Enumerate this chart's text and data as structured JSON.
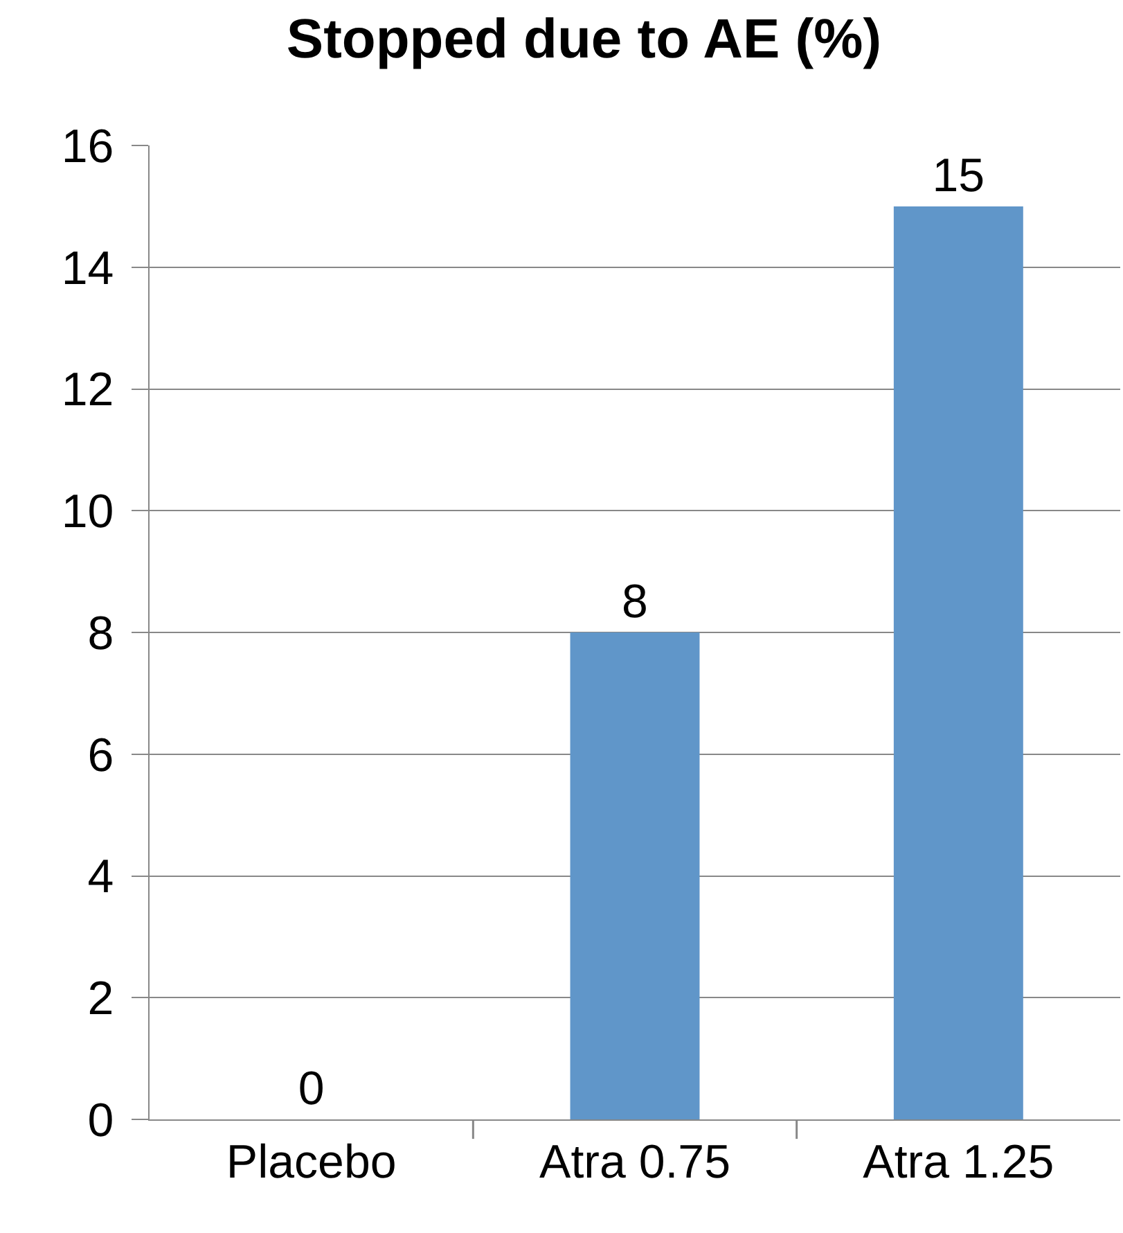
{
  "chart_data": {
    "type": "bar",
    "title": "Stopped due to AE (%)",
    "categories": [
      "Placebo",
      "Atra 0.75",
      "Atra 1.25"
    ],
    "values": [
      0,
      8,
      15
    ],
    "color": "#6096c9",
    "ylim": [
      0,
      16
    ],
    "yticks": [
      0,
      2,
      4,
      6,
      8,
      10,
      12,
      14,
      16
    ],
    "grid": "y",
    "data_labels": true
  }
}
